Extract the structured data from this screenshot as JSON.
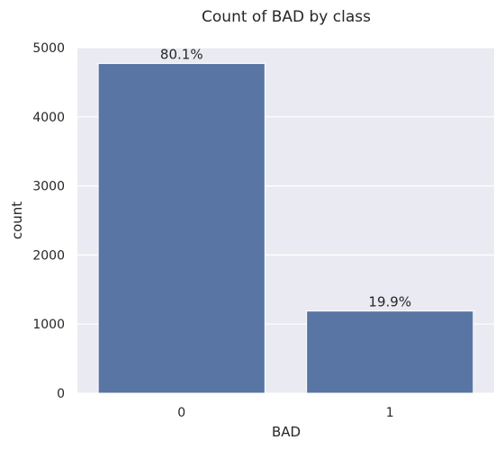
{
  "chart_data": {
    "type": "bar",
    "title": "Count of BAD by class",
    "xlabel": "BAD",
    "ylabel": "count",
    "categories": [
      "0",
      "1"
    ],
    "values": [
      4771,
      1189
    ],
    "data_labels": [
      "80.1%",
      "19.9%"
    ],
    "ylim": [
      0,
      5000
    ],
    "yticks": [
      0,
      1000,
      2000,
      3000,
      4000,
      5000
    ],
    "grid": true,
    "colors": {
      "bar": "#5975a4",
      "background": "#eaeaf2",
      "grid": "#ffffff"
    }
  }
}
